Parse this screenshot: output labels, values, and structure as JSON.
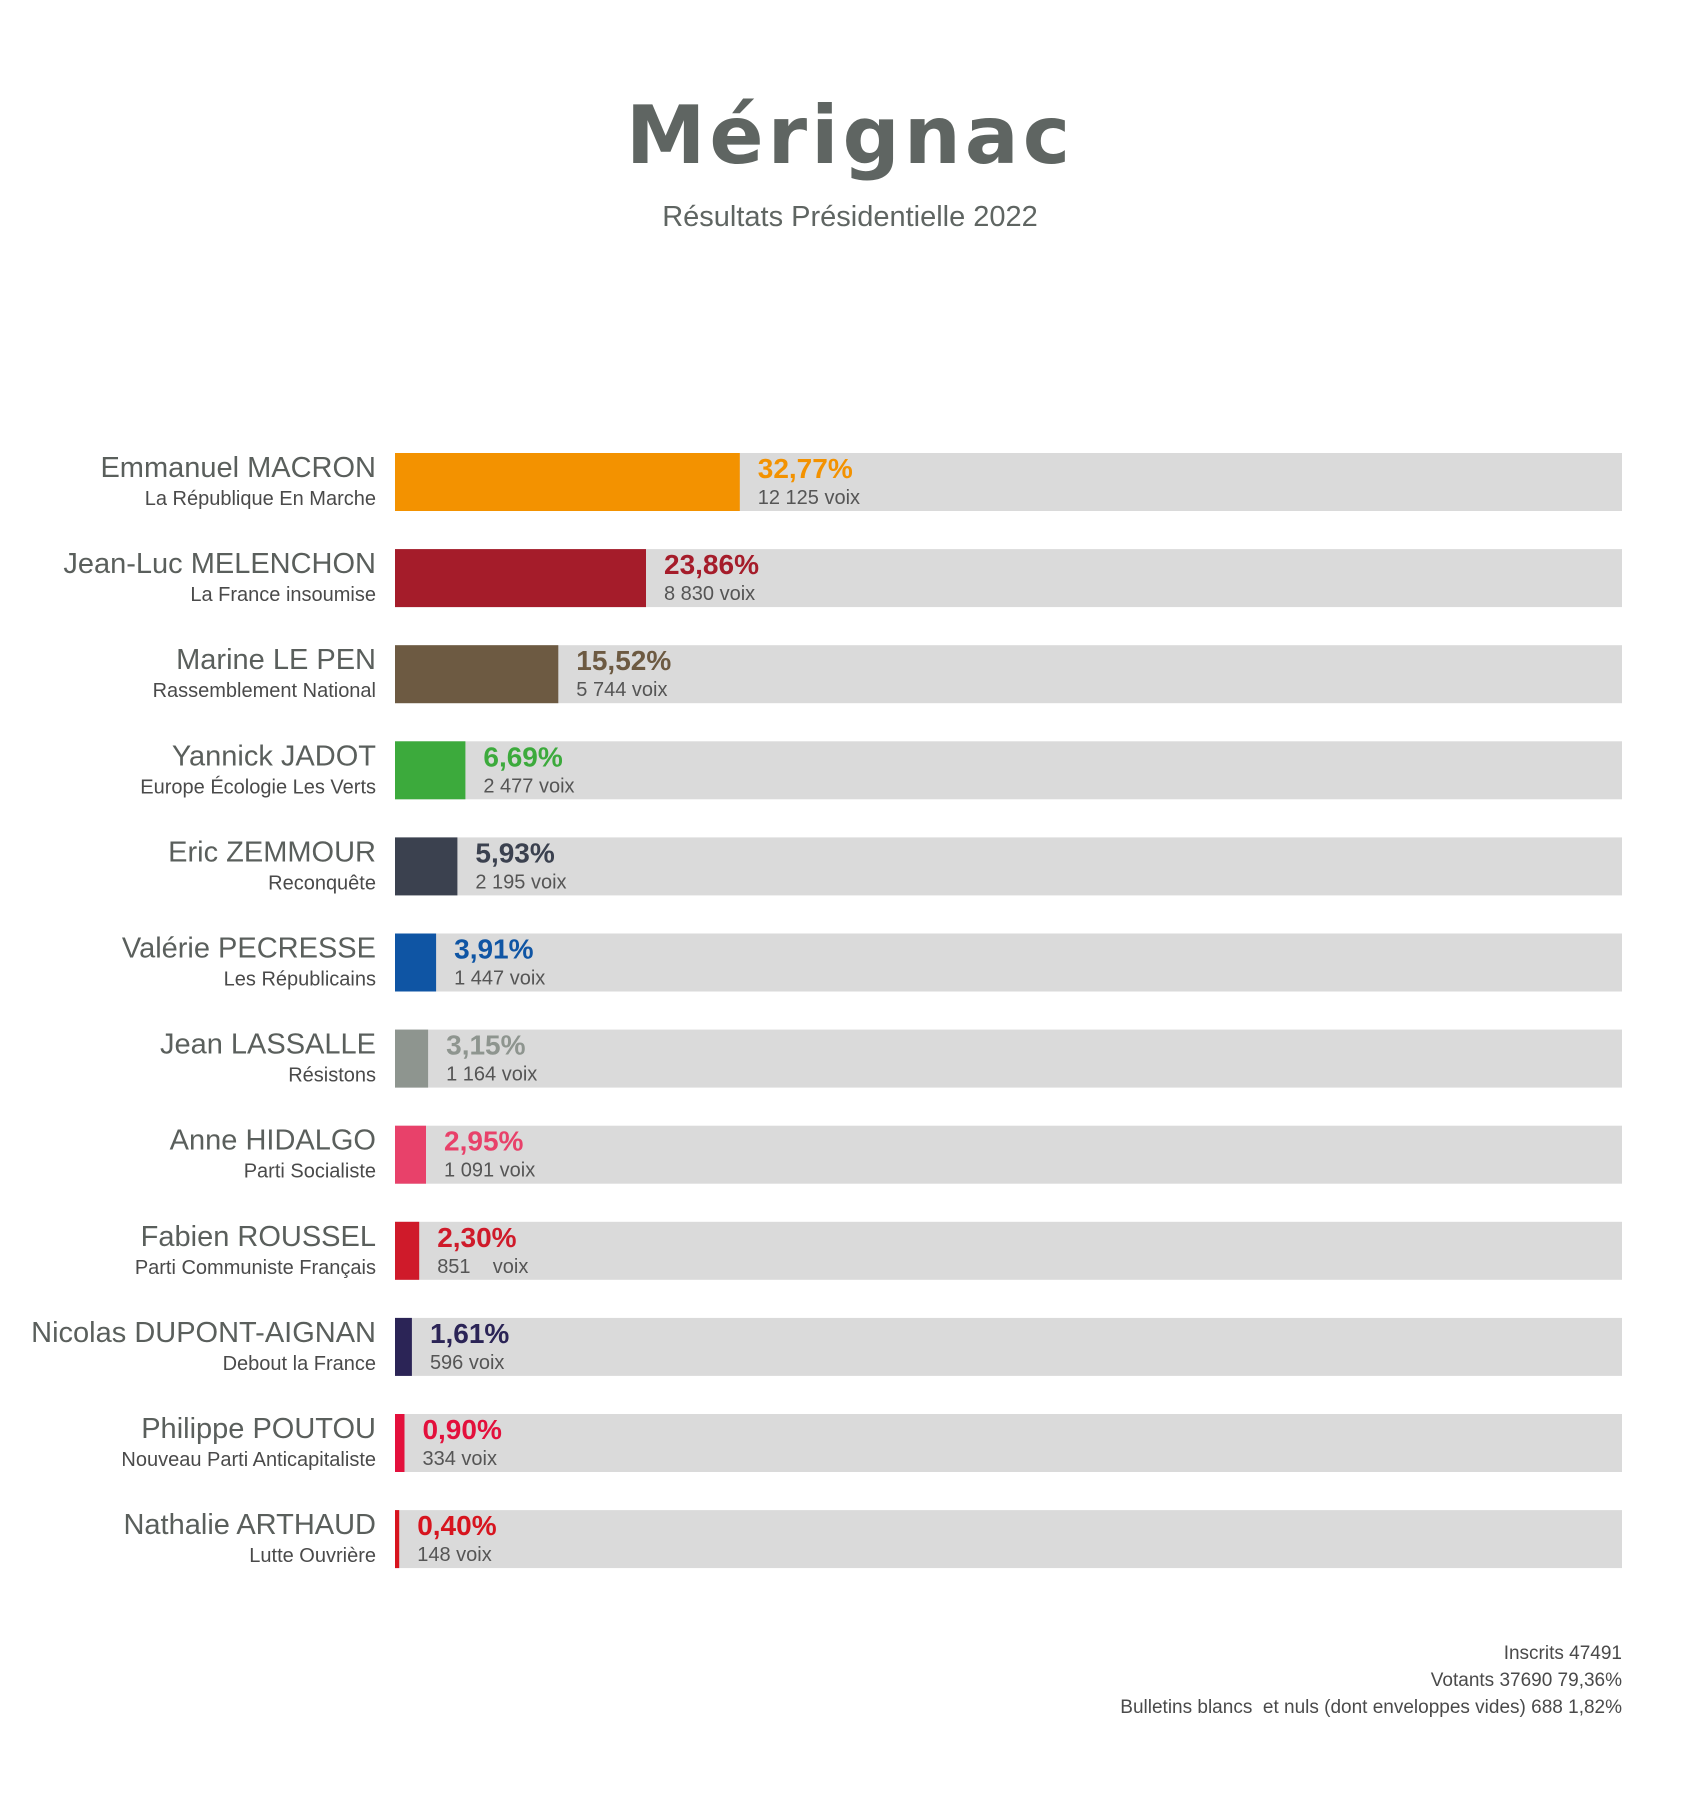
{
  "header": {
    "title": "Mérignac",
    "subtitle": "Résultats Présidentielle 2022"
  },
  "chart_data": {
    "type": "bar",
    "orientation": "horizontal",
    "xlim": [
      0,
      100
    ],
    "track_color": "#dadada",
    "rows": [
      {
        "candidate": "Emmanuel MACRON",
        "party": "La République En Marche",
        "value": 32.77,
        "value_label": "32,77%",
        "votes_label": "12 125 voix",
        "color": "#f39200"
      },
      {
        "candidate": "Jean-Luc MELENCHON",
        "party": "La France insoumise",
        "value": 23.86,
        "value_label": "23,86%",
        "votes_label": "8 830 voix",
        "color": "#a51c2a"
      },
      {
        "candidate": "Marine LE PEN",
        "party": "Rassemblement National",
        "value": 15.52,
        "value_label": "15,52%",
        "votes_label": "5 744 voix",
        "color": "#6d5a42"
      },
      {
        "candidate": "Yannick JADOT",
        "party": "Europe Écologie Les Verts",
        "value": 6.69,
        "value_label": "6,69%",
        "votes_label": "2 477 voix",
        "color": "#3caa3c"
      },
      {
        "candidate": "Eric ZEMMOUR",
        "party": "Reconquête",
        "value": 5.93,
        "value_label": "5,93%",
        "votes_label": "2 195 voix",
        "color": "#3b414f"
      },
      {
        "candidate": "Valérie PECRESSE",
        "party": "Les Républicains",
        "value": 3.91,
        "value_label": "3,91%",
        "votes_label": "1 447 voix",
        "color": "#0f55a4"
      },
      {
        "candidate": "Jean LASSALLE",
        "party": "Résistons",
        "value": 3.15,
        "value_label": "3,15%",
        "votes_label": "1 164 voix",
        "color": "#8e958f"
      },
      {
        "candidate": "Anne HIDALGO",
        "party": "Parti Socialiste",
        "value": 2.95,
        "value_label": "2,95%",
        "votes_label": "1 091 voix",
        "color": "#e8416a"
      },
      {
        "candidate": "Fabien ROUSSEL",
        "party": "Parti Communiste Français",
        "value": 2.3,
        "value_label": "2,30%",
        "votes_label": "851    voix",
        "color": "#cf1a2a"
      },
      {
        "candidate": "Nicolas DUPONT-AIGNAN",
        "party": "Debout la France",
        "value": 1.61,
        "value_label": "1,61%",
        "votes_label": "596 voix",
        "color": "#2b2456"
      },
      {
        "candidate": "Philippe POUTOU",
        "party": "Nouveau Parti Anticapitaliste",
        "value": 0.9,
        "value_label": "0,90%",
        "votes_label": "334 voix",
        "color": "#e3103c"
      },
      {
        "candidate": "Nathalie ARTHAUD",
        "party": "Lutte Ouvrière",
        "value": 0.4,
        "value_label": "0,40%",
        "votes_label": "148 voix",
        "color": "#d7141e"
      }
    ]
  },
  "footer": {
    "inscrits": "Inscrits 47491",
    "votants": "Votants 37690 79,36%",
    "blancs": "Bulletins blancs  et nuls (dont enveloppes vides) 688 1,82%"
  }
}
